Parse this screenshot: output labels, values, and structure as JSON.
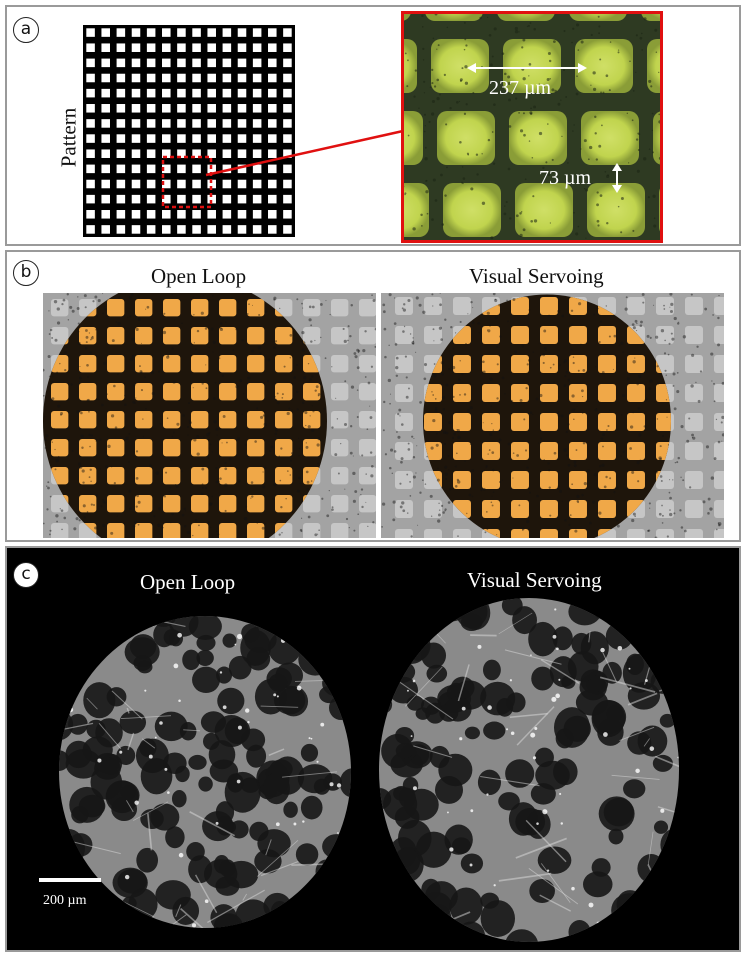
{
  "panel_a": {
    "badge": "a",
    "pattern_label": "Pattern",
    "spacing_label": "237 µm",
    "line_width_label": "73 µm"
  },
  "panel_b": {
    "badge": "b",
    "left_title": "Open Loop",
    "right_title": "Visual Servoing"
  },
  "panel_c": {
    "badge": "c",
    "left_title": "Open Loop",
    "right_title": "Visual Servoing",
    "scale_bar_label": "200 µm"
  },
  "colors": {
    "frame": "#9a9a9a",
    "zoom_box": "#e01010",
    "pattern_grid": "#000000",
    "micrograph_green": "#c8dc50",
    "micrograph_dark": "#2e3a22",
    "exposed_orange": "#f0a848",
    "fluorescence_bg": "#000000"
  }
}
